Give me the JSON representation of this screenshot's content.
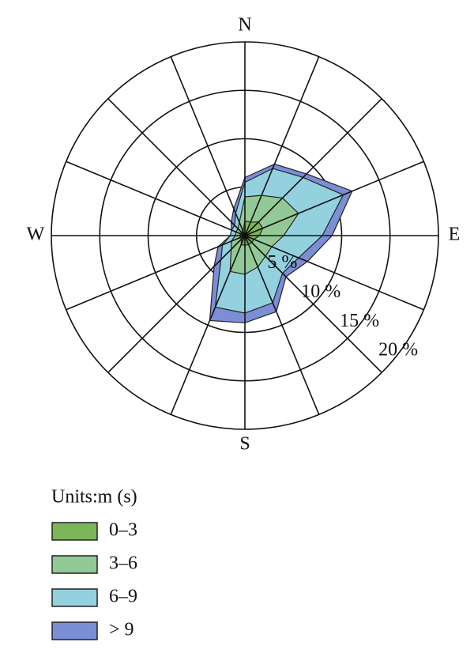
{
  "chart_data": {
    "type": "windrose",
    "categories": [
      "N",
      null,
      null,
      null,
      "E",
      null,
      null,
      null,
      "S",
      null,
      null,
      null,
      "W",
      null,
      null,
      null
    ],
    "legend_title": "Units:m (s)",
    "series": [
      {
        "name": "0–3",
        "color": "#7cb55a",
        "values": [
          1.5,
          1.5,
          2,
          2,
          1.5,
          1,
          1,
          1,
          1,
          1,
          0.5,
          0.5,
          0.5,
          0.5,
          0.5,
          0.5
        ]
      },
      {
        "name": "3–6",
        "color": "#93c996",
        "values": [
          2.5,
          3,
          3.5,
          4,
          2.5,
          2,
          2,
          2.5,
          3,
          3,
          1.5,
          1,
          0.5,
          0.5,
          0.5,
          1
        ]
      },
      {
        "name": "6–9",
        "color": "#93d1df",
        "values": [
          1.5,
          3,
          3,
          5,
          4,
          3,
          2.5,
          4,
          4,
          4,
          1.5,
          1,
          0.5,
          0.5,
          0.5,
          1
        ]
      },
      {
        "name": "> 9",
        "color": "#7b8ed6",
        "values": [
          0.5,
          0.5,
          0.5,
          1,
          1,
          1,
          0.5,
          1,
          1,
          1.5,
          1,
          0.5,
          0,
          0,
          0.5,
          0.5
        ]
      }
    ],
    "rlim": [
      0,
      20
    ],
    "rticks": [
      {
        "value": 5,
        "label": "5 %"
      },
      {
        "value": 10,
        "label": "10 %"
      },
      {
        "value": 15,
        "label": "15 %"
      },
      {
        "value": 20,
        "label": "20 %"
      }
    ],
    "stacked": true
  }
}
